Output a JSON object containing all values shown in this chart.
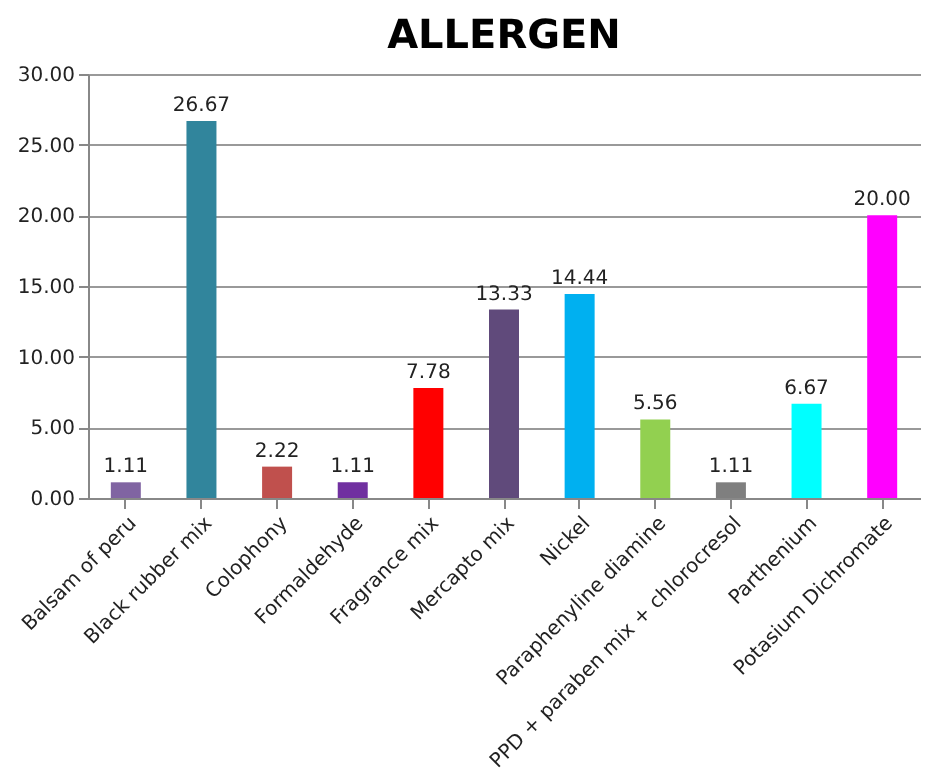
{
  "chart_data": {
    "type": "bar",
    "title": "ALLERGEN",
    "categories": [
      "Balsam of peru",
      "Black rubber mix",
      "Colophony",
      "Formaldehyde",
      "Fragrance mix",
      "Mercapto mix",
      "Nickel",
      "Paraphenyline diamine",
      "PPD + paraben mix + chlorocresol",
      "Parthenium",
      "Potasium Dichromate"
    ],
    "values": [
      1.11,
      26.67,
      2.22,
      1.11,
      7.78,
      13.33,
      14.44,
      5.56,
      1.11,
      6.67,
      20.0
    ],
    "value_labels": [
      "1.11",
      "26.67",
      "2.22",
      "1.11",
      "7.78",
      "13.33",
      "14.44",
      "5.56",
      "1.11",
      "6.67",
      "20.00"
    ],
    "colors": [
      "#8064a2",
      "#31859c",
      "#c0504d",
      "#7030a0",
      "#ff0000",
      "#604a7b",
      "#00b0f0",
      "#92d050",
      "#7f7f7f",
      "#00ffff",
      "#ff00ff"
    ],
    "ylim": [
      0,
      30
    ],
    "yticks": [
      {
        "value": 0,
        "label": "0.00"
      },
      {
        "value": 5,
        "label": "5.00"
      },
      {
        "value": 10,
        "label": "10.00"
      },
      {
        "value": 15,
        "label": "15.00"
      },
      {
        "value": 20,
        "label": "20.00"
      },
      {
        "value": 25,
        "label": "25.00"
      },
      {
        "value": 30,
        "label": "30.00"
      }
    ],
    "grid": "y"
  }
}
